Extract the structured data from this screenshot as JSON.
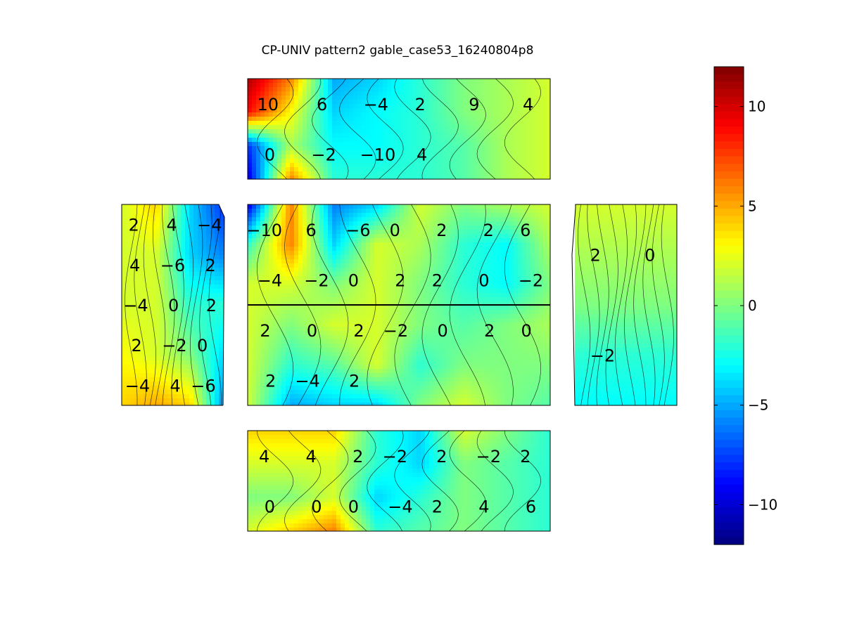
{
  "chart_data": {
    "type": "heatmap",
    "title": "CP-UNIV pattern2 gable_case53_16240804p8",
    "colormap": "jet",
    "clim": [
      -12,
      12
    ],
    "colorbar": {
      "ticks": [
        10,
        5,
        0,
        -5,
        -10
      ],
      "tick_labels": [
        "10",
        "5",
        "0",
        "−5",
        "−10"
      ]
    },
    "panels": [
      {
        "name": "top-roof",
        "grid": [
          [
            11,
            6,
            -5,
            -4,
            -2,
            0,
            1,
            2
          ],
          [
            9,
            3,
            -4,
            -3,
            -2,
            0,
            1,
            2
          ],
          [
            -8,
            1,
            -3,
            -3,
            -2,
            -1,
            1,
            2
          ],
          [
            -10,
            6,
            -2,
            -2,
            -2,
            -1,
            1,
            2
          ]
        ],
        "contour_labels": [
          "10",
          "6",
          "−4",
          "2",
          "9",
          "4",
          "0",
          "−2",
          "−10",
          "4"
        ]
      },
      {
        "name": "left-side",
        "grid": [
          [
            2,
            4,
            -4,
            -8
          ],
          [
            2,
            2,
            -4,
            -6
          ],
          [
            2,
            2,
            -2,
            -2
          ],
          [
            3,
            2,
            0,
            -4
          ],
          [
            4,
            5,
            4,
            -6
          ]
        ],
        "contour_labels": [
          "2",
          "4",
          "−4",
          "4",
          "−6",
          "2",
          "−4",
          "0",
          "2",
          "2",
          "−2",
          "0",
          "−4",
          "4",
          "−6"
        ]
      },
      {
        "name": "front-wall",
        "grid": [
          [
            -10,
            6,
            -6,
            -4,
            2,
            0,
            1,
            2
          ],
          [
            -2,
            6,
            -4,
            2,
            1,
            -2,
            -3,
            1
          ],
          [
            2,
            2,
            0,
            2,
            0,
            -2,
            -3,
            0
          ],
          [
            2,
            0,
            2,
            2,
            0,
            -1,
            0,
            1
          ],
          [
            2,
            -2,
            -1,
            2,
            -2,
            0,
            0,
            0
          ],
          [
            2,
            -5,
            -4,
            -4,
            0,
            2,
            0,
            -1
          ]
        ],
        "contour_labels": [
          "−10",
          "6",
          "−6",
          "0",
          "2",
          "2",
          "6",
          "−4",
          "−2",
          "0",
          "2",
          "2",
          "0",
          "−2",
          "2",
          "0",
          "2",
          "−2",
          "0",
          "2",
          "0",
          "2",
          "−4",
          "2"
        ]
      },
      {
        "name": "right-side",
        "grid": [
          [
            2,
            2,
            2
          ],
          [
            1,
            1,
            1
          ],
          [
            0,
            0,
            0
          ],
          [
            -2,
            -2,
            -2
          ],
          [
            -3,
            -3,
            -3
          ]
        ],
        "contour_labels": [
          "2",
          "0",
          "−2"
        ]
      },
      {
        "name": "bottom-roof",
        "grid": [
          [
            4,
            4,
            4,
            -2,
            -4,
            2,
            0,
            -2
          ],
          [
            2,
            2,
            2,
            -2,
            -4,
            0,
            -1,
            -2
          ],
          [
            0,
            0,
            2,
            -4,
            -2,
            0,
            -1,
            -2
          ],
          [
            2,
            4,
            6,
            -2,
            -1,
            0,
            -1,
            -2
          ]
        ],
        "contour_labels": [
          "4",
          "4",
          "2",
          "−2",
          "2",
          "−2",
          "2",
          "0",
          "0",
          "0",
          "−4",
          "2",
          "4",
          "6"
        ]
      }
    ]
  }
}
